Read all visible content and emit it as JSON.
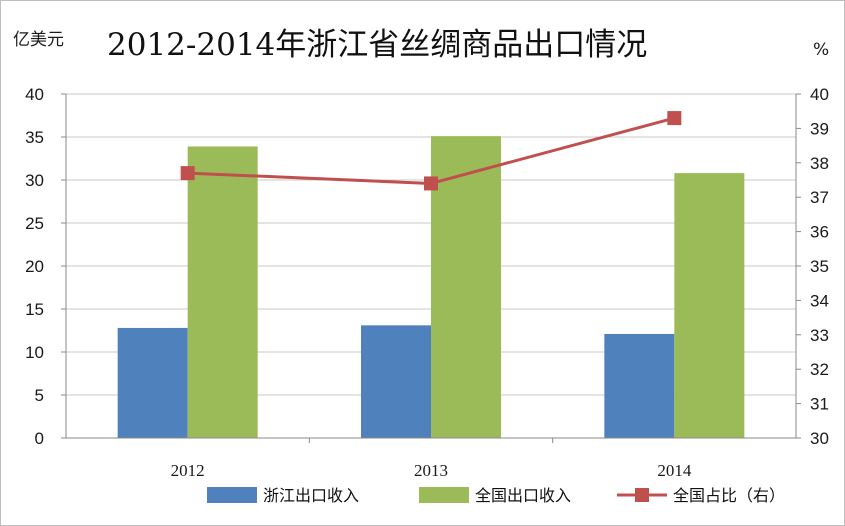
{
  "chart_data": {
    "type": "bar+line",
    "title": "2012-2014年浙江省丝绸商品出口情况",
    "left_unit": "亿美元",
    "right_unit": "%",
    "categories": [
      "2012",
      "2013",
      "2014"
    ],
    "left_axis": {
      "min": 0,
      "max": 40,
      "ticks": [
        "0",
        "5",
        "10",
        "15",
        "20",
        "25",
        "30",
        "35",
        "40"
      ]
    },
    "right_axis": {
      "min": 30,
      "max": 40,
      "ticks": [
        "30",
        "31",
        "32",
        "33",
        "34",
        "35",
        "36",
        "37",
        "38",
        "39",
        "40"
      ]
    },
    "grid": "horizontal",
    "legend_position": "bottom",
    "series": [
      {
        "name": "浙江出口收入",
        "type": "bar",
        "axis": "left",
        "color": "#4f81bd",
        "values": [
          12.8,
          13.1,
          12.1
        ]
      },
      {
        "name": "全国出口收入",
        "type": "bar",
        "axis": "left",
        "color": "#9bbb59",
        "values": [
          33.9,
          35.1,
          30.8
        ]
      },
      {
        "name": "全国占比（右）",
        "type": "line",
        "axis": "right",
        "color": "#c0504d",
        "marker": "square",
        "values": [
          37.7,
          37.4,
          39.3
        ]
      }
    ]
  }
}
